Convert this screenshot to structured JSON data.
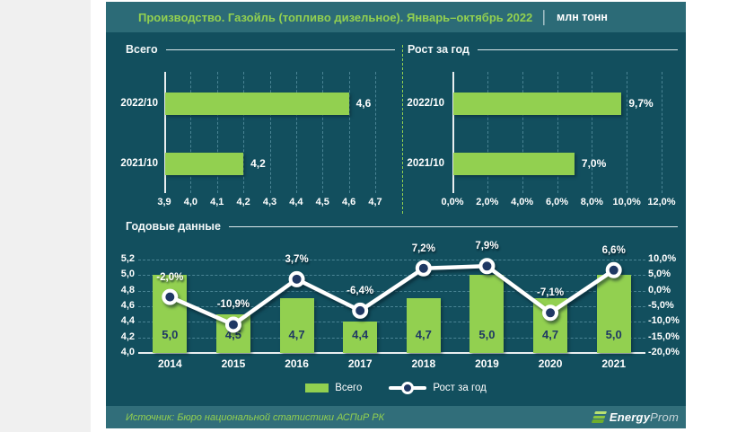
{
  "header": {
    "title": "Производство. Газойль (топливо дизельное). Январь–октябрь 2022",
    "separator": "│",
    "unit": "млн тонн"
  },
  "panels": {
    "total": {
      "title": "Всего"
    },
    "growth": {
      "title": "Рост за год"
    },
    "annual": {
      "title": "Годовые данные"
    }
  },
  "legend": {
    "total": "Всего",
    "growth": "Рост за год"
  },
  "footer": {
    "source": "Источник: Бюро национальной статистики АСПиР РК",
    "logo_bold": "Energy",
    "logo_light": "Prom"
  },
  "colors": {
    "accent_green": "#92d050",
    "card_bg": "#124f5e",
    "band_bg": "#2c6b77",
    "footer_bg": "#316e7a",
    "grid": "#4a8494",
    "navy": "#1f3864",
    "white": "#ffffff",
    "page_margin": "#f0f0f0"
  },
  "chart_data": [
    {
      "id": "total_hbar",
      "type": "bar",
      "orientation": "horizontal",
      "title": "Всего",
      "categories": [
        "2022/10",
        "2021/10"
      ],
      "values": [
        4.6,
        4.2
      ],
      "value_labels": [
        "4,6",
        "4,2"
      ],
      "xlim": [
        3.9,
        4.7
      ],
      "x_ticks": [
        3.9,
        4.0,
        4.1,
        4.2,
        4.3,
        4.4,
        4.5,
        4.6,
        4.7
      ],
      "x_tick_labels": [
        "3,9",
        "4,0",
        "4,1",
        "4,2",
        "4,3",
        "4,4",
        "4,5",
        "4,6",
        "4,7"
      ],
      "grid": true
    },
    {
      "id": "growth_hbar",
      "type": "bar",
      "orientation": "horizontal",
      "title": "Рост за год",
      "categories": [
        "2022/10",
        "2021/10"
      ],
      "values": [
        9.7,
        7.0
      ],
      "value_labels": [
        "9,7%",
        "7,0%"
      ],
      "xlim": [
        0,
        12
      ],
      "x_ticks": [
        0,
        2,
        4,
        6,
        8,
        10,
        12
      ],
      "x_tick_labels": [
        "0,0%",
        "2,0%",
        "4,0%",
        "6,0%",
        "8,0%",
        "10,0%",
        "12,0%"
      ],
      "grid": true
    },
    {
      "id": "annual_combo",
      "type": "combo",
      "title": "Годовые данные",
      "categories": [
        "2014",
        "2015",
        "2016",
        "2017",
        "2018",
        "2019",
        "2020",
        "2021"
      ],
      "series": [
        {
          "name": "Всего",
          "type": "bar",
          "axis": "left",
          "values": [
            5.0,
            4.5,
            4.7,
            4.4,
            4.7,
            5.0,
            4.7,
            5.0
          ],
          "labels": [
            "5,0",
            "4,5",
            "4,7",
            "4,4",
            "4,7",
            "5,0",
            "4,7",
            "5,0"
          ]
        },
        {
          "name": "Рост за год",
          "type": "line",
          "axis": "right",
          "values": [
            -2.0,
            -10.9,
            3.7,
            -6.4,
            7.2,
            7.9,
            -7.1,
            6.6
          ],
          "labels": [
            "-2,0%",
            "-10,9%",
            "3,7%",
            "-6,4%",
            "7,2%",
            "7,9%",
            "-7,1%",
            "6,6%"
          ]
        }
      ],
      "left_axis": {
        "lim": [
          4.0,
          5.2
        ],
        "tick_labels": [
          "4,0",
          "4,2",
          "4,4",
          "4,6",
          "4,8",
          "5,0",
          "5,2"
        ]
      },
      "right_axis": {
        "lim": [
          -20,
          10
        ],
        "tick_labels": [
          "-20,0%",
          "-15,0%",
          "-10,0%",
          "-5,0%",
          "0,0%",
          "5,0%",
          "10,0%"
        ]
      },
      "legend_position": "bottom",
      "grid": true
    }
  ]
}
